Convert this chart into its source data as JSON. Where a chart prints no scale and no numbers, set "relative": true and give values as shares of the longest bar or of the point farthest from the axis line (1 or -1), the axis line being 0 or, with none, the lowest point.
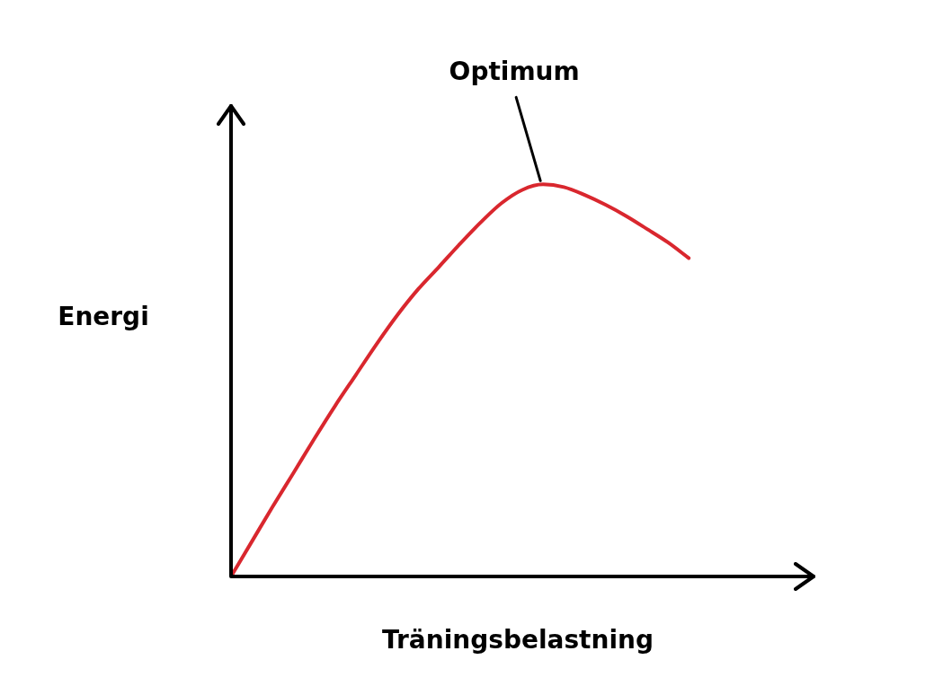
{
  "chart_data": {
    "type": "line",
    "relative": true,
    "xlabel": "Träningsbelastning",
    "ylabel": "Energi",
    "annotations": [
      "Optimum"
    ],
    "categories": [
      null,
      null,
      null,
      null,
      null,
      null,
      null,
      null,
      null,
      null,
      null,
      null,
      null,
      null,
      null,
      null,
      null,
      null,
      null,
      null,
      null,
      null,
      null,
      null,
      null,
      null,
      null,
      null,
      null
    ],
    "series": [
      {
        "color": "#d9272e",
        "values": [
          0,
          0.089,
          0.178,
          0.264,
          0.351,
          0.435,
          0.514,
          0.593,
          0.667,
          0.733,
          0.79,
          0.848,
          0.903,
          0.952,
          0.986,
          1,
          0.993,
          0.973,
          0.948,
          0.919,
          0.886,
          0.852,
          0.812,
          null,
          null,
          null,
          null,
          null,
          null
        ]
      }
    ]
  }
}
